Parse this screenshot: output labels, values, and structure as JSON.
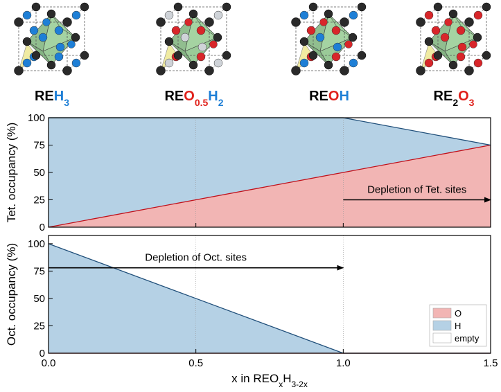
{
  "structures": [
    {
      "parts": [
        {
          "text": "RE",
          "color": "#000000"
        },
        {
          "text": "H",
          "color": "#1e7fd6"
        },
        {
          "text": "3",
          "color": "#1e7fd6",
          "sub": true
        }
      ],
      "balls": [
        "#1e7fd6",
        "#1e7fd6"
      ]
    },
    {
      "parts": [
        {
          "text": "RE",
          "color": "#000000"
        },
        {
          "text": "O",
          "color": "#e0201a"
        },
        {
          "text": "0.5",
          "color": "#e0201a",
          "sub": true
        },
        {
          "text": "H",
          "color": "#1e7fd6"
        },
        {
          "text": "2",
          "color": "#1e7fd6",
          "sub": true
        }
      ],
      "balls": [
        "#d8262a",
        "#cfd3d8"
      ]
    },
    {
      "parts": [
        {
          "text": "RE",
          "color": "#000000"
        },
        {
          "text": "O",
          "color": "#e0201a"
        },
        {
          "text": "H",
          "color": "#1e7fd6"
        }
      ],
      "balls": [
        "#d8262a",
        "#1e7fd6"
      ]
    },
    {
      "parts": [
        {
          "text": "RE",
          "color": "#000000"
        },
        {
          "text": "2",
          "color": "#000000",
          "sub": true
        },
        {
          "text": "O",
          "color": "#e0201a"
        },
        {
          "text": "3",
          "color": "#e0201a",
          "sub": true
        }
      ],
      "balls": [
        "#d8262a",
        "#d8262a"
      ]
    }
  ],
  "chart_data": [
    {
      "type": "area",
      "ylabel": "Tet. occupancy (%)",
      "x": [
        0,
        0.5,
        1,
        1.5
      ],
      "xlim": [
        0,
        1.5
      ],
      "xticks": [
        0,
        0.5,
        1,
        1.5
      ],
      "show_xtick_labels": false,
      "ylim": [
        0,
        100
      ],
      "yticks": [
        0,
        25,
        50,
        75,
        100
      ],
      "grid": "x",
      "series": [
        {
          "color": "#f2b5b4",
          "line_color": "#c0101a",
          "values": [
            0,
            25,
            50,
            75
          ]
        },
        {
          "color": "#b5d1e5",
          "line_color": "#1f4e79",
          "values": [
            100,
            75,
            50,
            0
          ]
        },
        {
          "color": "#ffffff",
          "values": [
            0,
            0,
            0,
            25
          ]
        }
      ],
      "annotations": [
        {
          "text": "Depletion of Tet. sites",
          "x": [
            1.0,
            1.5
          ],
          "y": 25
        }
      ]
    },
    {
      "type": "area",
      "ylabel": "Oct. occupancy (%)",
      "xlabel": [
        {
          "text": "x in REO"
        },
        {
          "text": "x",
          "sub": true
        },
        {
          "text": "H"
        },
        {
          "text": "3-2x",
          "sub": true
        }
      ],
      "x": [
        0,
        0.5,
        1,
        1.5
      ],
      "xlim": [
        0,
        1.5
      ],
      "xticks": [
        {
          "value": 0,
          "label": "0.0"
        },
        0.5,
        {
          "value": 1,
          "label": "1.0"
        },
        1.5
      ],
      "show_xtick_labels": true,
      "ylim": [
        0,
        107.5
      ],
      "yticks": [
        0,
        25,
        50,
        75,
        100
      ],
      "grid": "x",
      "legend": "lower right",
      "series": [
        {
          "name": "O",
          "color": "#f2b5b4",
          "line_color": "#c0101a",
          "values": [
            0,
            0,
            0,
            0
          ]
        },
        {
          "name": "H",
          "color": "#b5d1e5",
          "line_color": "#1f4e79",
          "values": [
            100,
            50,
            0,
            0
          ]
        },
        {
          "name": "empty",
          "color": "#ffffff",
          "values": [
            0,
            50,
            100,
            100
          ]
        }
      ],
      "annotations": [
        {
          "text": "Depletion of Oct. sites",
          "x": [
            0,
            1.0
          ],
          "y": 78
        }
      ]
    }
  ]
}
